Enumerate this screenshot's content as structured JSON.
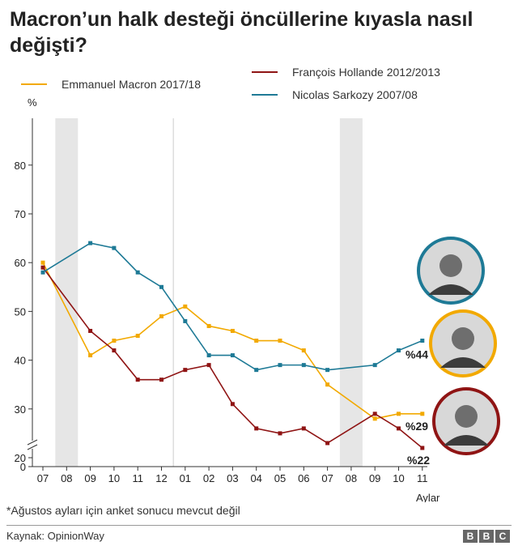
{
  "title": "Macron’un halk desteği öncüllerine kıyasla nasıl değişti?",
  "footnote": "*Ağustos ayları için anket sonucu mevcut değil",
  "source": "Kaynak: OpinionWay",
  "brand": [
    "B",
    "B",
    "C"
  ],
  "colors": {
    "macron": "#f2a900",
    "hollande": "#8f1414",
    "sarkozy": "#1e7a96",
    "shade": "#e6e6e6",
    "axis": "#333333",
    "divider": "#cccccc"
  },
  "portraits": [
    {
      "name": "sarkozy-portrait-icon",
      "ring": "#1e7a96"
    },
    {
      "name": "macron-portrait-icon",
      "ring": "#f2a900"
    },
    {
      "name": "hollande-portrait-icon",
      "ring": "#8f1414"
    }
  ],
  "chart_data": {
    "type": "line",
    "ylabel": "%",
    "xlabel": "Aylar",
    "ylim": [
      0,
      80
    ],
    "yticks": [
      0,
      20,
      30,
      40,
      50,
      60,
      70,
      80
    ],
    "axis_break": true,
    "categories": [
      "07",
      "08",
      "09",
      "10",
      "11",
      "12",
      "01",
      "02",
      "03",
      "04",
      "05",
      "06",
      "07",
      "08",
      "09",
      "10",
      "11"
    ],
    "shaded_categories": [
      "08"
    ],
    "year_divider_between": [
      "12",
      "01"
    ],
    "series": [
      {
        "key": "macron",
        "name": "Emmanuel Macron 2017/18",
        "values": [
          60,
          null,
          41,
          44,
          45,
          49,
          51,
          47,
          46,
          44,
          44,
          42,
          35,
          null,
          28,
          29,
          29
        ],
        "end_label": "%29"
      },
      {
        "key": "hollande",
        "name": "François Hollande 2012/2013",
        "values": [
          59,
          null,
          46,
          42,
          36,
          36,
          38,
          39,
          31,
          26,
          25,
          26,
          23,
          null,
          29,
          26,
          22
        ],
        "end_label": "%22"
      },
      {
        "key": "sarkozy",
        "name": "Nicolas Sarkozy 2007/08",
        "values": [
          58,
          null,
          64,
          63,
          58,
          55,
          48,
          41,
          41,
          38,
          39,
          39,
          38,
          null,
          39,
          42,
          44
        ],
        "end_label": "%44"
      }
    ]
  }
}
